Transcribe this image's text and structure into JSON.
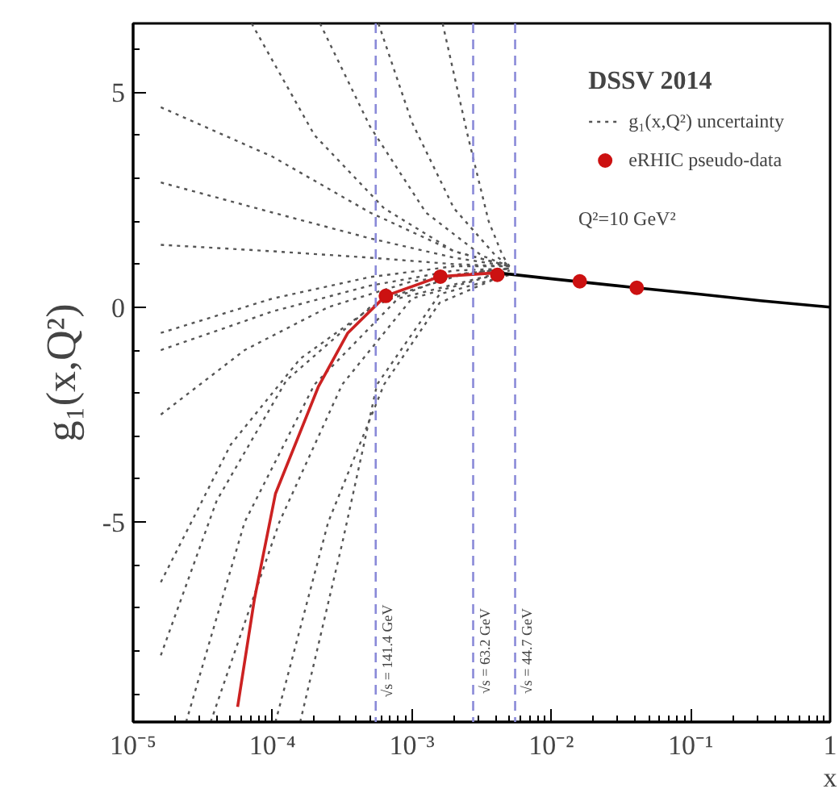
{
  "chart_data": {
    "type": "line",
    "legend_title": "DSSV 2014",
    "xlabel": "x",
    "ylabel": "g₁(x,Q²)",
    "log": "x",
    "grid": false,
    "legend": "top right",
    "xlim": [
      1e-05,
      1
    ],
    "ylim": [
      -9.65,
      6.6
    ],
    "xticks": [
      {
        "value": 1e-05,
        "label": "10⁻⁵"
      },
      {
        "value": 0.0001,
        "label": "10⁻⁴"
      },
      {
        "value": 0.001,
        "label": "10⁻³"
      },
      {
        "value": 0.01,
        "label": "10⁻²"
      },
      {
        "value": 0.1,
        "label": "10⁻¹"
      },
      1
    ],
    "yticks": [
      -5,
      0,
      5
    ],
    "annotations": [
      "Q²=10 GeV²",
      {
        "text": "√s = 141.4 GeV",
        "x": 0.00055,
        "y": -8
      },
      {
        "text": "√s = 63.2 GeV",
        "x": 0.00275,
        "y": -8
      },
      {
        "text": "√s = 44.7 GeV",
        "x": 0.0055,
        "y": -8
      }
    ],
    "ref_lines": [
      {
        "axis": "x",
        "value": 0.00055,
        "color": "#8a8ad8",
        "line_style": "dashed"
      },
      {
        "axis": "x",
        "value": 0.00275,
        "color": "#8a8ad8",
        "line_style": "dashed"
      },
      {
        "axis": "x",
        "value": 0.0055,
        "color": "#8a8ad8",
        "line_style": "dashed"
      }
    ],
    "series": [
      {
        "name": "g₁(x,Q²) uncertainty",
        "color": "#555555",
        "line_style": "dotted",
        "x": [
          1.58e-05,
          0.0001,
          0.000501,
          0.002,
          0.00501
        ],
        "values": [
          4.65,
          3.5,
          2.2,
          1.3,
          0.95
        ]
      },
      {
        "color": "#555555",
        "line_style": "dotted",
        "x": [
          1.58e-05,
          0.0001,
          0.000501,
          0.002,
          0.00501
        ],
        "values": [
          2.9,
          2.2,
          1.6,
          1.15,
          0.95
        ]
      },
      {
        "color": "#555555",
        "line_style": "dotted",
        "x": [
          1.58e-05,
          0.0001,
          0.000501,
          0.002,
          0.00501
        ],
        "values": [
          1.45,
          1.3,
          1.15,
          1.0,
          0.95
        ]
      },
      {
        "color": "#555555",
        "line_style": "dotted",
        "x": [
          7.08e-05,
          0.0002,
          0.000631,
          0.002,
          0.00501
        ],
        "values": [
          6.6,
          4.0,
          2.3,
          1.3,
          0.95
        ]
      },
      {
        "color": "#555555",
        "line_style": "dotted",
        "x": [
          0.000219,
          0.000501,
          0.00126,
          0.00316,
          0.00501
        ],
        "values": [
          6.6,
          4.2,
          2.2,
          1.2,
          0.95
        ]
      },
      {
        "color": "#555555",
        "line_style": "dotted",
        "x": [
          0.000575,
          0.001,
          0.002,
          0.00398,
          0.00501
        ],
        "values": [
          6.6,
          4.3,
          2.3,
          1.2,
          0.95
        ]
      },
      {
        "color": "#555555",
        "line_style": "dotted",
        "x": [
          0.00166,
          0.00251,
          0.00355,
          0.00447,
          0.00501
        ],
        "values": [
          6.6,
          4.0,
          2.0,
          1.2,
          0.95
        ]
      },
      {
        "color": "#555555",
        "line_style": "dotted",
        "x": [
          1.58e-05,
          0.0001,
          0.000501,
          0.002,
          0.00501
        ],
        "values": [
          -0.6,
          0.2,
          0.7,
          0.95,
          0.95
        ]
      },
      {
        "color": "#555555",
        "line_style": "dotted",
        "x": [
          1.58e-05,
          0.0001,
          0.000501,
          0.002,
          0.00501
        ],
        "values": [
          -1.0,
          -0.1,
          0.5,
          0.85,
          0.9
        ]
      },
      {
        "color": "#555555",
        "line_style": "dotted",
        "x": [
          1.58e-05,
          6.31e-05,
          0.000251,
          0.001,
          0.00501
        ],
        "values": [
          -2.5,
          -1.0,
          0.0,
          0.6,
          0.9
        ]
      },
      {
        "color": "#555555",
        "line_style": "dotted",
        "x": [
          1.58e-05,
          5.01e-05,
          0.000158,
          0.000631,
          0.00251,
          0.00501
        ],
        "values": [
          -6.4,
          -3.2,
          -1.2,
          0.2,
          0.8,
          0.9
        ]
      },
      {
        "color": "#555555",
        "line_style": "dotted",
        "x": [
          1.58e-05,
          3.98e-05,
          0.000126,
          0.000501,
          0.002,
          0.00501
        ],
        "values": [
          -8.1,
          -4.5,
          -1.7,
          0.0,
          0.75,
          0.9
        ]
      },
      {
        "color": "#555555",
        "line_style": "dotted",
        "x": [
          2.4e-05,
          6.31e-05,
          0.0002,
          0.000794,
          0.00501
        ],
        "values": [
          -9.65,
          -5.0,
          -1.8,
          0.2,
          0.85
        ]
      },
      {
        "color": "#555555",
        "line_style": "dotted",
        "x": [
          3.6e-05,
          0.000112,
          0.000316,
          0.001,
          0.00501
        ],
        "values": [
          -9.65,
          -5.0,
          -1.8,
          0.2,
          0.85
        ]
      },
      {
        "color": "#555555",
        "line_style": "dotted",
        "x": [
          0.000105,
          0.000251,
          0.000631,
          0.00158,
          0.00501
        ],
        "values": [
          -9.65,
          -5.0,
          -1.8,
          0.1,
          0.8
        ]
      },
      {
        "color": "#555555",
        "line_style": "dotted",
        "x": [
          0.000158,
          0.000316,
          0.000562,
          0.00158,
          0.00501
        ],
        "values": [
          -9.65,
          -5.5,
          -1.8,
          0.3,
          0.75
        ]
      },
      {
        "color": "#cc2222",
        "line_style": "solid",
        "x": [
          5.62e-05,
          7.41e-05,
          0.000105,
          0.000214,
          0.000347,
          0.000646,
          0.00158,
          0.00407
        ],
        "values": [
          -9.3,
          -6.8,
          -4.34,
          -1.84,
          -0.6,
          0.26,
          0.71,
          0.8
        ]
      },
      {
        "color": "#000000",
        "line_style": "solid",
        "x": [
          0.00407,
          0.0107,
          0.0407,
          0.117,
          0.316,
          1
        ],
        "values": [
          0.8,
          0.65,
          0.45,
          0.3,
          0.15,
          0.0
        ]
      },
      {
        "type": "scatter",
        "name": "eRHIC pseudo-data",
        "color": "#cc1111",
        "marker": "circle",
        "x": [
          0.00065,
          0.0016,
          0.0041,
          0.016,
          0.041
        ],
        "values": [
          0.26,
          0.71,
          0.75,
          0.6,
          0.45
        ]
      }
    ]
  }
}
